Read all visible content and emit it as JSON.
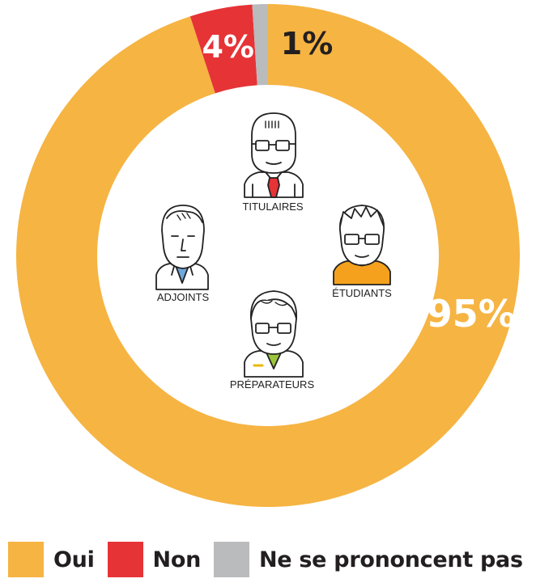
{
  "chart_data": {
    "type": "pie",
    "variant": "donut",
    "categories": [
      "Oui",
      "Non",
      "Ne se prononcent pas"
    ],
    "values": [
      95,
      4,
      1
    ],
    "value_labels": [
      "95%",
      "4%",
      "1%"
    ],
    "colors": [
      "#f6b443",
      "#e63336",
      "#b9bbbd"
    ],
    "label_colors": [
      "#ffffff",
      "#ffffff",
      "#231f20"
    ],
    "legend_position": "bottom-left",
    "center_labels": [
      "TITULAIRES",
      "ADJOINTS",
      "ÉTUDIANTS",
      "PRÉPARATEURS"
    ],
    "center_icons": [
      "pharmacist-titulaire-icon",
      "pharmacist-adjoint-icon",
      "student-icon",
      "preparateur-icon"
    ]
  }
}
